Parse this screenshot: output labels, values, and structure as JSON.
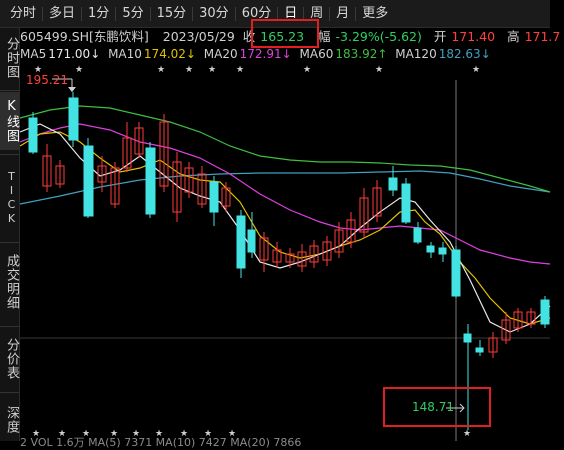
{
  "toolbar": {
    "tabs": [
      "分时",
      "多日",
      "1分",
      "5分",
      "15分",
      "30分",
      "60分",
      "日",
      "周",
      "月",
      "更多"
    ],
    "active_tab": "日"
  },
  "sidebar": {
    "timeshare": "分时图",
    "kline": "K线图",
    "tick": "TICK",
    "deals": "成交明细",
    "price_table": "分价表",
    "depth": "深度"
  },
  "stock": {
    "code_name": "605499.SH[东鹏饮料]",
    "date": "2023/05/29",
    "close_label": "收",
    "close": "165.23",
    "change_label": "幅",
    "change": "-3.29%(-5.62)",
    "open_label": "开",
    "open": "171.40",
    "high_label": "高",
    "high": "171.7"
  },
  "ma": {
    "ma5_label": "MA5",
    "ma5": "171.00↓",
    "ma10_label": "MA10",
    "ma10": "174.02↓",
    "ma20_label": "MA20",
    "ma20": "172.91↓",
    "ma60_label": "MA60",
    "ma60": "183.92↑",
    "ma120_label": "MA120",
    "ma120": "182.63↓"
  },
  "chart": {
    "high_marker": "195.21",
    "low_marker": "148.71"
  },
  "bottom": {
    "text": "2 VOL 1.6万 MA(5) 7371 MA(10) 7427 MA(20) 7866"
  },
  "colors": {
    "up": "#ff3c3c",
    "down": "#44e3e3",
    "ma5": "#e8e8e8",
    "ma10": "#e0c200",
    "ma20": "#e040e0",
    "ma60": "#3fbf3f",
    "ma120": "#40a0c0",
    "highlight": "#e02020"
  }
}
